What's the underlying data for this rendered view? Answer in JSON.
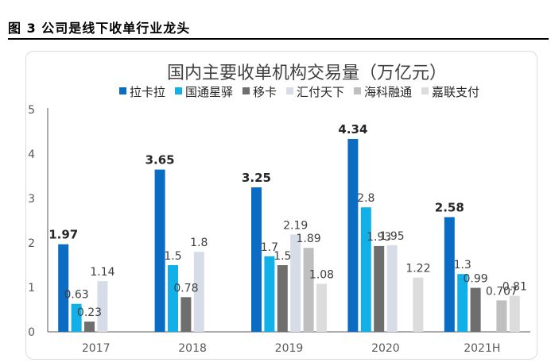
{
  "figure": {
    "caption": "图 3 公司是线下收单行业龙头"
  },
  "chart_data": {
    "type": "bar",
    "title": "国内主要收单机构交易量（万亿元）",
    "categories": [
      "2017",
      "2018",
      "2019",
      "2020",
      "2021H"
    ],
    "ylim": [
      0,
      5
    ],
    "yticks": [
      "0",
      "1",
      "2",
      "3",
      "4",
      "5"
    ],
    "grid": false,
    "legend_position": "top",
    "series": [
      {
        "name": "拉卡拉",
        "color": "#0b6cc4",
        "values": [
          1.97,
          3.65,
          3.25,
          4.34,
          2.58
        ],
        "labels": [
          "1.97",
          "3.65",
          "3.25",
          "4.34",
          "2.58"
        ],
        "bold": true
      },
      {
        "name": "国通星驿",
        "color": "#12b0e8",
        "values": [
          0.63,
          1.5,
          1.7,
          2.8,
          1.3
        ],
        "labels": [
          "0.63",
          "1.5",
          "1.7",
          "2.8",
          "1.3"
        ],
        "bold": false
      },
      {
        "name": "移卡",
        "color": "#6e6e6e",
        "values": [
          0.23,
          0.78,
          1.5,
          1.93,
          0.99
        ],
        "labels": [
          "0.23",
          "0.78",
          "1.5",
          "1.93",
          "0.99"
        ],
        "bold": false
      },
      {
        "name": "汇付天下",
        "color": "#d6dde8",
        "values": [
          1.14,
          1.8,
          2.19,
          1.95,
          null
        ],
        "labels": [
          "1.14",
          "1.8",
          "2.19",
          "1.95",
          ""
        ],
        "bold": false
      },
      {
        "name": "海科融通",
        "color": "#bfbfbf",
        "values": [
          null,
          null,
          1.89,
          null,
          0.707
        ],
        "labels": [
          "",
          "",
          "1.89",
          "",
          "0.707"
        ],
        "bold": false
      },
      {
        "name": "嘉联支付",
        "color": "#dcdcdc",
        "values": [
          null,
          null,
          1.08,
          1.22,
          0.81
        ],
        "labels": [
          "",
          "",
          "1.08",
          "1.22",
          "0.81"
        ],
        "bold": false
      }
    ]
  }
}
